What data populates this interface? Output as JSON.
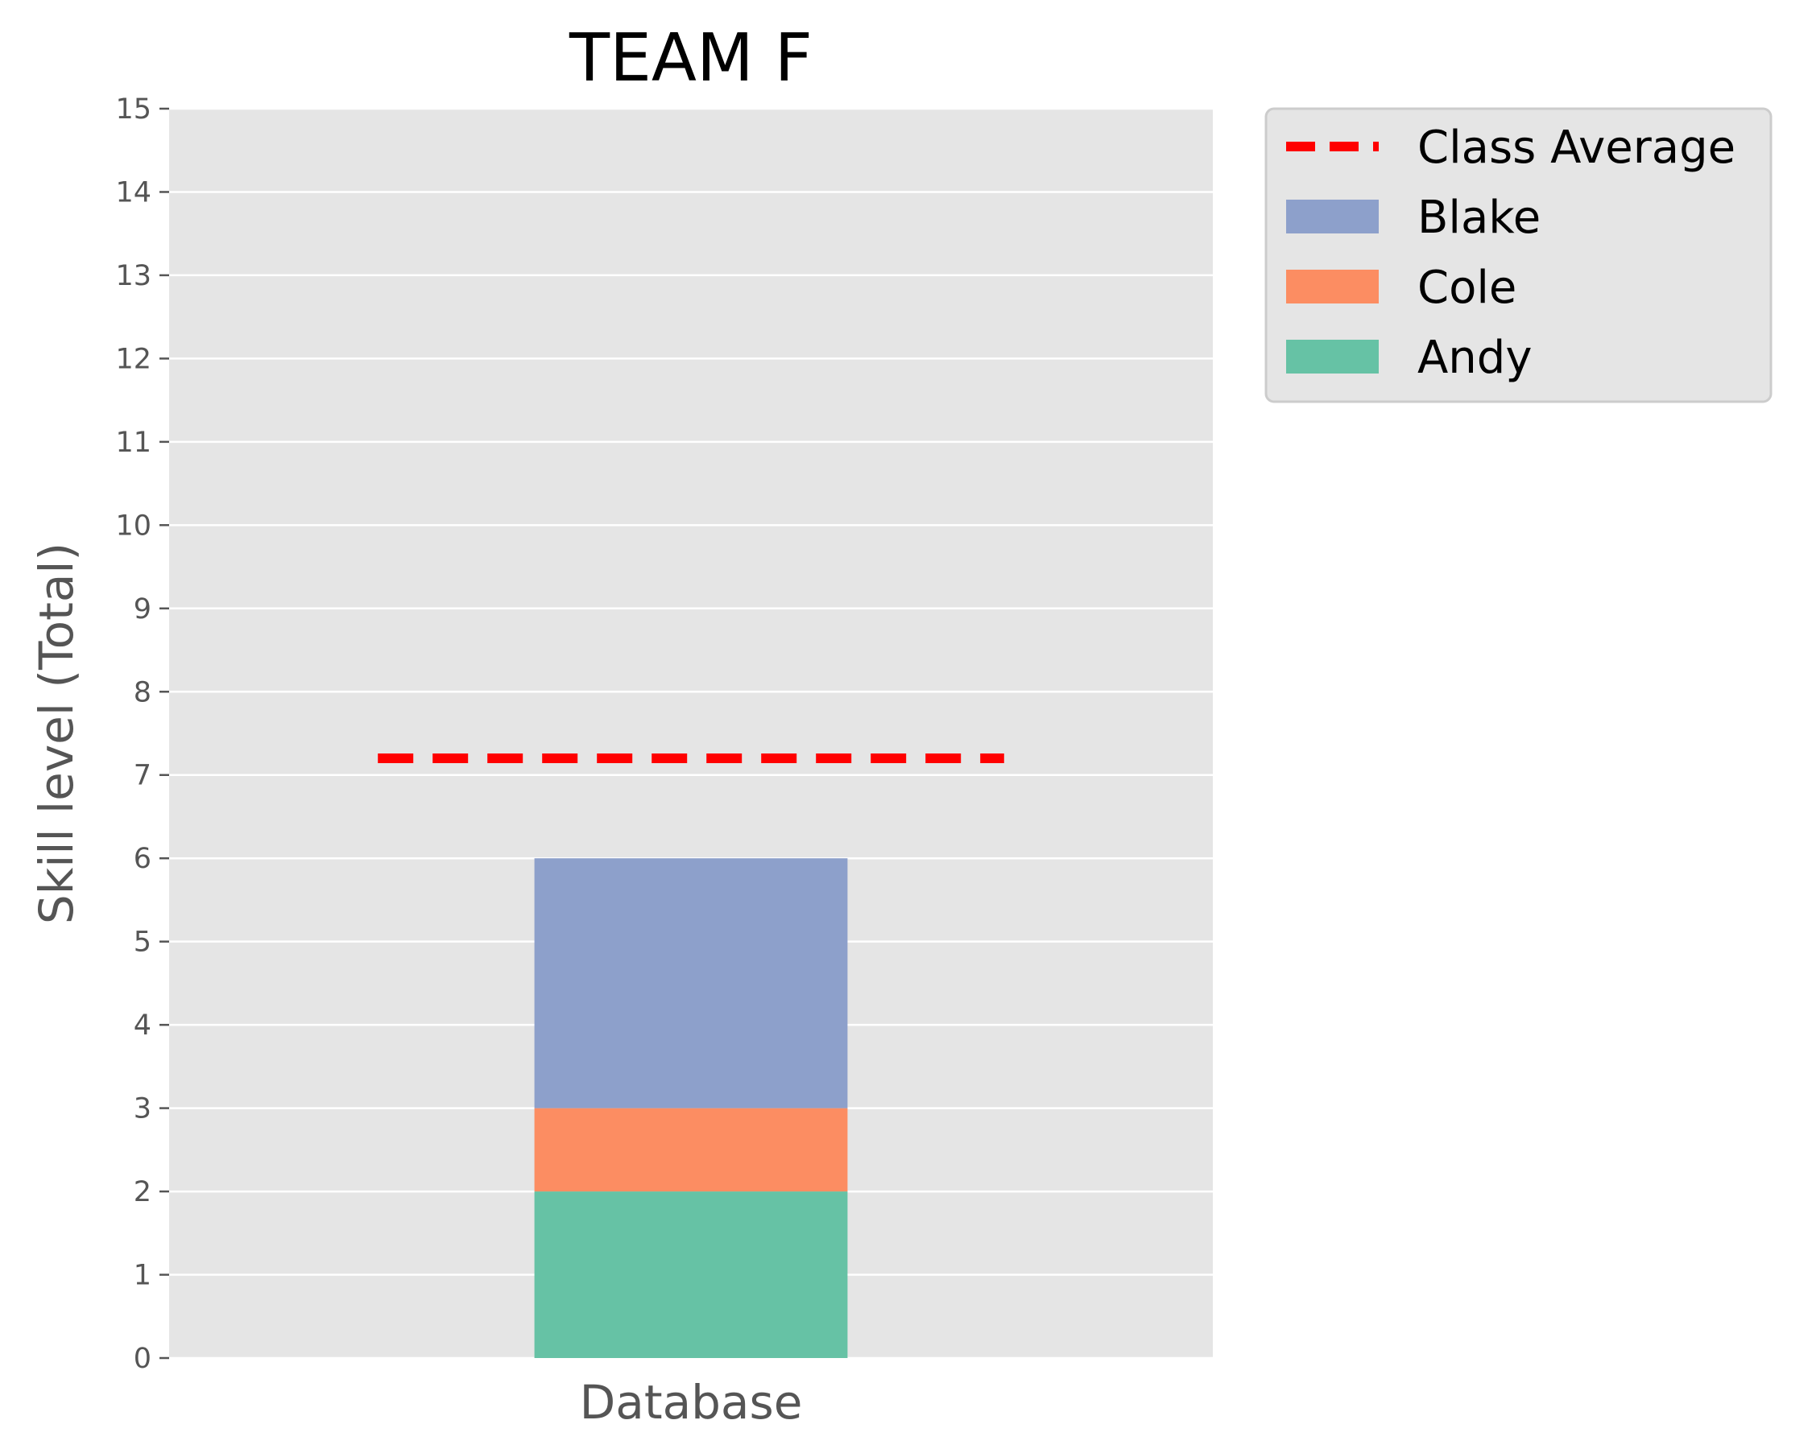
{
  "chart_data": {
    "type": "bar",
    "title": "TEAM F",
    "xlabel": "",
    "ylabel": "Skill level (Total)",
    "categories": [
      "Database"
    ],
    "stacked": true,
    "series": [
      {
        "name": "Andy",
        "values": [
          2
        ],
        "color": "#66c2a5"
      },
      {
        "name": "Cole",
        "values": [
          1
        ],
        "color": "#fc8d62"
      },
      {
        "name": "Blake",
        "values": [
          3
        ],
        "color": "#8da0cb"
      }
    ],
    "reference_lines": [
      {
        "name": "Class Average",
        "value": 7.2,
        "color": "#ff0000",
        "style": "dashed"
      }
    ],
    "ylim": [
      0,
      15
    ],
    "yticks": [
      0,
      1,
      2,
      3,
      4,
      5,
      6,
      7,
      8,
      9,
      10,
      11,
      12,
      13,
      14,
      15
    ],
    "grid": true,
    "legend_position": "outside-top-right",
    "legend_order": [
      "Class Average",
      "Blake",
      "Cole",
      "Andy"
    ],
    "plot_background": "#e5e5e5"
  }
}
